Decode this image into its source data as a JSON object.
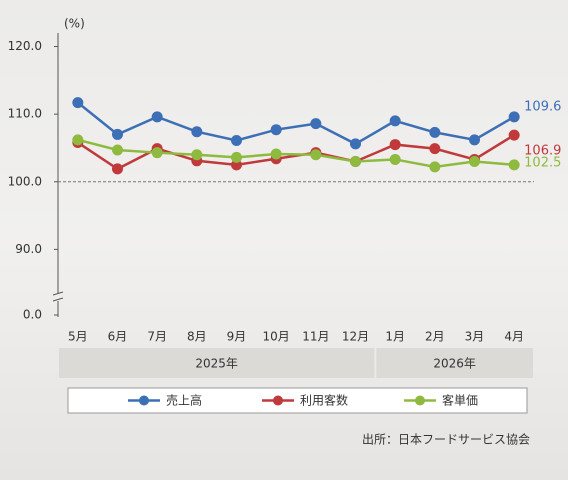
{
  "chart_data": {
    "type": "line",
    "y_unit": "(%)",
    "categories": [
      "5月",
      "6月",
      "7月",
      "8月",
      "9月",
      "10月",
      "11月",
      "12月",
      "1月",
      "2月",
      "3月",
      "4月"
    ],
    "groups": [
      {
        "label": "2025年",
        "span": 8
      },
      {
        "label": "2026年",
        "span": 4
      }
    ],
    "series": [
      {
        "name": "売上高",
        "color": "#3d6fb6",
        "values": [
          111.7,
          107.0,
          109.6,
          107.4,
          106.1,
          107.7,
          108.6,
          105.6,
          109.0,
          107.3,
          106.2,
          109.6
        ]
      },
      {
        "name": "利用客数",
        "color": "#c0393b",
        "values": [
          105.8,
          101.9,
          104.9,
          103.1,
          102.5,
          103.4,
          104.3,
          103.0,
          105.5,
          104.9,
          103.3,
          106.9
        ]
      },
      {
        "name": "客単価",
        "color": "#8dba3f",
        "values": [
          106.2,
          104.7,
          104.3,
          104.0,
          103.6,
          104.1,
          104.0,
          103.0,
          103.3,
          102.2,
          103.0,
          102.5
        ]
      }
    ],
    "ylim": [
      80,
      122
    ],
    "yticks": [
      {
        "value": 90,
        "label": "90.0"
      },
      {
        "value": 100,
        "label": "100.0"
      },
      {
        "value": 110,
        "label": "110.0"
      },
      {
        "value": 120,
        "label": "120.0"
      }
    ],
    "axis_break_tick": {
      "value": 0,
      "label": "0.0"
    },
    "reference_line": 100,
    "end_labels": true,
    "source": "出所：日本フードサービス協会"
  }
}
